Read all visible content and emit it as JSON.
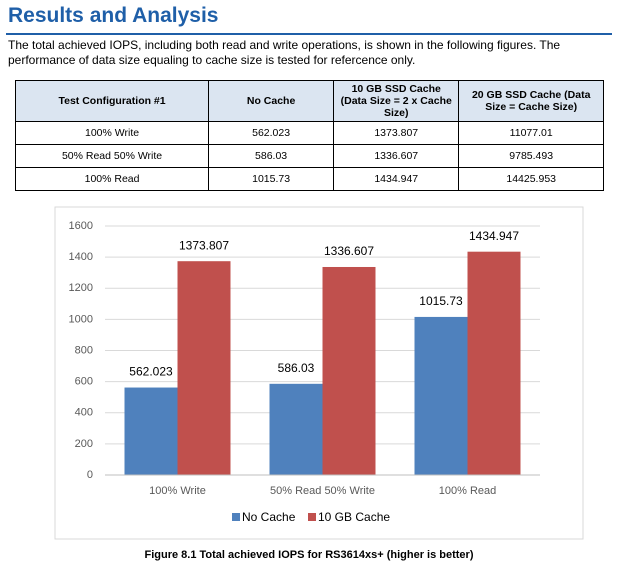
{
  "heading": "Results and Analysis",
  "intro": "The total achieved IOPS, including both read and write operations, is shown in the following figures. The performance of data size equaling to cache size is tested for refercence only.",
  "table": {
    "header": [
      "Test Configuration #1",
      "No Cache",
      "10 GB SSD Cache (Data Size = 2 x Cache Size)",
      "20 GB SSD Cache (Data Size = Cache Size)"
    ],
    "rows": [
      [
        "100% Write",
        "562.023",
        "1373.807",
        "11077.01"
      ],
      [
        "50% Read 50% Write",
        "586.03",
        "1336.607",
        "9785.493"
      ],
      [
        "100% Read",
        "1015.73",
        "1434.947",
        "14425.953"
      ]
    ]
  },
  "chart_data": {
    "type": "bar",
    "categories": [
      "100% Write",
      "50% Read 50% Write",
      "100% Read"
    ],
    "series": [
      {
        "name": "No Cache",
        "color": "#4f81bd",
        "values": [
          562.023,
          586.03,
          1015.73
        ]
      },
      {
        "name": "10 GB Cache",
        "color": "#c0504d",
        "values": [
          1373.807,
          1336.607,
          1434.947
        ]
      }
    ],
    "ylim": [
      0,
      1600
    ],
    "yticks": [
      0,
      200,
      400,
      600,
      800,
      1000,
      1200,
      1400,
      1600
    ],
    "grid": true,
    "legend": "bottom"
  },
  "caption": "Figure 8.1 Total achieved IOPS for RS3614xs+ (higher is better)"
}
